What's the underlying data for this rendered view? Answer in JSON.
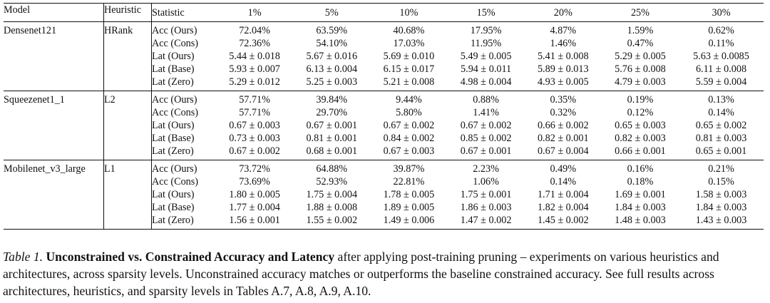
{
  "table": {
    "headers": {
      "model": "Model",
      "heuristic": "Heuristic",
      "statistic": "Statistic",
      "sparsity": [
        "1%",
        "5%",
        "10%",
        "15%",
        "20%",
        "25%",
        "30%"
      ]
    },
    "groups": [
      {
        "model": "Densenet121",
        "heuristic": "HRank",
        "rows": [
          {
            "stat": "Acc (Ours)",
            "values": [
              "72.04%",
              "63.59%",
              "40.68%",
              "17.95%",
              "4.87%",
              "1.59%",
              "0.62%"
            ]
          },
          {
            "stat": "Acc (Cons)",
            "values": [
              "72.36%",
              "54.10%",
              "17.03%",
              "11.95%",
              "1.46%",
              "0.47%",
              "0.11%"
            ]
          },
          {
            "stat": "Lat (Ours)",
            "values": [
              "5.44 ± 0.018",
              "5.67 ± 0.016",
              "5.69 ± 0.010",
              "5.49 ± 0.005",
              "5.41 ± 0.008",
              "5.29 ± 0.005",
              "5.63 ± 0.0085"
            ]
          },
          {
            "stat": "Lat (Base)",
            "values": [
              "5.93 ± 0.007",
              "6.13 ± 0.004",
              "6.15 ± 0.017",
              "5.94 ± 0.011",
              "5.89 ± 0.013",
              "5.76 ± 0.008",
              "6.11 ± 0.008"
            ]
          },
          {
            "stat": "Lat (Zero)",
            "values": [
              "5.29 ± 0.012",
              "5.25 ± 0.003",
              "5.21 ± 0.008",
              "4.98 ± 0.004",
              "4.93 ± 0.005",
              "4.79 ± 0.003",
              "5.59 ± 0.004"
            ]
          }
        ]
      },
      {
        "model": "Squeezenet1_1",
        "heuristic": "L2",
        "rows": [
          {
            "stat": "Acc (Ours)",
            "values": [
              "57.71%",
              "39.84%",
              "9.44%",
              "0.88%",
              "0.35%",
              "0.19%",
              "0.13%"
            ]
          },
          {
            "stat": "Acc (Cons)",
            "values": [
              "57.71%",
              "29.70%",
              "5.80%",
              "1.41%",
              "0.32%",
              "0.12%",
              "0.14%"
            ]
          },
          {
            "stat": "Lat (Ours)",
            "values": [
              "0.67 ± 0.003",
              "0.67 ± 0.001",
              "0.67 ± 0.002",
              "0.67 ± 0.002",
              "0.66 ± 0.002",
              "0.65 ± 0.003",
              "0.65 ± 0.002"
            ]
          },
          {
            "stat": "Lat (Base)",
            "values": [
              "0.73 ± 0.003",
              "0.81 ± 0.001",
              "0.84 ± 0.002",
              "0.85 ± 0.002",
              "0.82 ± 0.001",
              "0.82 ± 0.003",
              "0.81 ± 0.003"
            ]
          },
          {
            "stat": "Lat (Zero)",
            "values": [
              "0.67 ± 0.002",
              "0.68 ± 0.001",
              "0.67 ± 0.003",
              "0.67 ± 0.001",
              "0.67 ± 0.004",
              "0.66 ± 0.001",
              "0.65 ± 0.001"
            ]
          }
        ]
      },
      {
        "model": "Mobilenet_v3_large",
        "heuristic": "L1",
        "rows": [
          {
            "stat": "Acc (Ours)",
            "values": [
              "73.72%",
              "64.88%",
              "39.87%",
              "2.23%",
              "0.49%",
              "0.16%",
              "0.21%"
            ]
          },
          {
            "stat": "Acc (Cons)",
            "values": [
              "73.69%",
              "52.93%",
              "22.81%",
              "1.06%",
              "0.14%",
              "0.18%",
              "0.15%"
            ]
          },
          {
            "stat": "Lat (Ours)",
            "values": [
              "1.80 ± 0.005",
              "1.75 ± 0.004",
              "1.78 ± 0.005",
              "1.75 ± 0.001",
              "1.71 ± 0.004",
              "1.69 ± 0.001",
              "1.58 ± 0.003"
            ]
          },
          {
            "stat": "Lat (Base)",
            "values": [
              "1.77 ± 0.004",
              "1.88 ± 0.008",
              "1.89 ± 0.005",
              "1.86 ± 0.003",
              "1.82 ± 0.004",
              "1.84 ± 0.003",
              "1.84 ± 0.003"
            ]
          },
          {
            "stat": "Lat (Zero)",
            "values": [
              "1.56 ± 0.001",
              "1.55 ± 0.002",
              "1.49 ± 0.006",
              "1.47 ± 0.002",
              "1.45 ± 0.002",
              "1.48 ± 0.003",
              "1.43 ± 0.003"
            ]
          }
        ]
      }
    ]
  },
  "caption": {
    "label": "Table 1.",
    "title": "Unconstrained vs. Constrained Accuracy and Latency",
    "text": "after applying post-training pruning – experiments on various heuristics and architectures, across sparsity levels. Unconstrained accuracy matches or outperforms the baseline constrained accuracy. See full results across architectures, heuristics, and sparsity levels in Tables A.7, A.8, A.9, A.10."
  }
}
